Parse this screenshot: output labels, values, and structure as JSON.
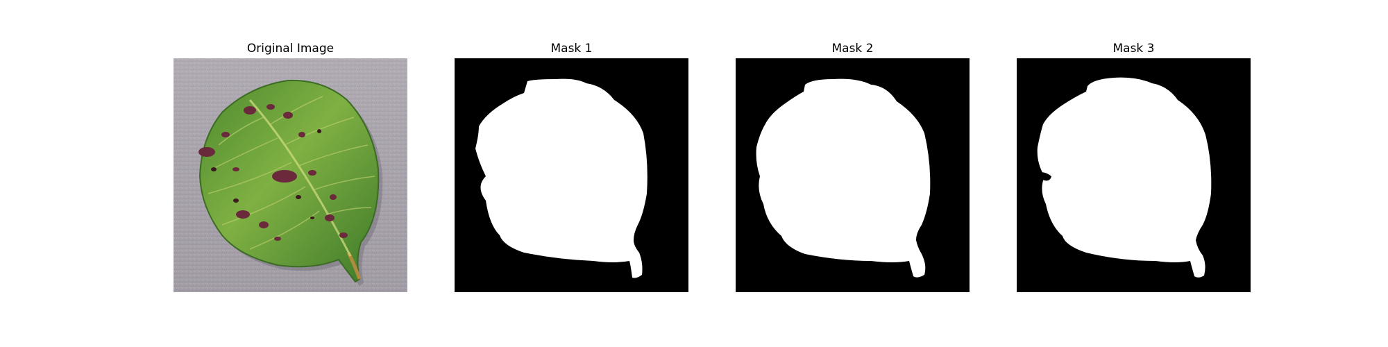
{
  "figure": {
    "panels": [
      {
        "title": "Original Image"
      },
      {
        "title": "Mask 1"
      },
      {
        "title": "Mask 2"
      },
      {
        "title": "Mask 3"
      }
    ],
    "colors": {
      "mask_background": "#000000",
      "mask_foreground": "#ffffff",
      "leaf_green": "#5f9a3a",
      "background_gray": "#aaa5ad",
      "lesion_purple": "#6b2a3c"
    }
  }
}
